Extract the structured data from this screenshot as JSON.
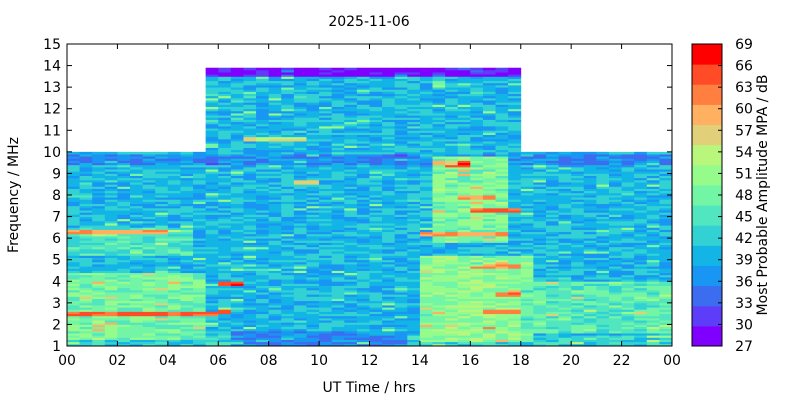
{
  "chart_data": {
    "type": "heatmap",
    "title": "2025-11-06",
    "xlabel": "UT Time / hrs",
    "ylabel": "Frequency / MHz",
    "xlim": [
      0,
      24
    ],
    "ylim": [
      1,
      15
    ],
    "x_ticks": [
      "00",
      "02",
      "04",
      "06",
      "08",
      "10",
      "12",
      "14",
      "16",
      "18",
      "20",
      "22",
      "00"
    ],
    "y_ticks": [
      "1",
      "2",
      "3",
      "4",
      "5",
      "6",
      "7",
      "8",
      "9",
      "10",
      "11",
      "12",
      "13",
      "14",
      "15"
    ],
    "colorbar": {
      "label": "Most Probable Amplitude MPA / dB",
      "ticks": [
        "27",
        "30",
        "33",
        "36",
        "39",
        "42",
        "45",
        "48",
        "51",
        "54",
        "57",
        "60",
        "63",
        "66",
        "69"
      ],
      "range": [
        27,
        69
      ],
      "colors": [
        "#8000ff",
        "#5e3df8",
        "#3c6df0",
        "#1996f3",
        "#13b4e6",
        "#32d2d4",
        "#51e6bf",
        "#73f5a6",
        "#95fc8c",
        "#b9f67c",
        "#e1cf7a",
        "#ffb060",
        "#ff7f40",
        "#ff4c26",
        "#ff0000"
      ]
    },
    "coverage": [
      {
        "x": [
          0,
          24
        ],
        "y": [
          1,
          10
        ]
      },
      {
        "x": [
          5.5,
          18
        ],
        "y": [
          10,
          13.9
        ]
      }
    ],
    "typical_level_db": 40,
    "bands": [
      {
        "x": [
          0,
          24
        ],
        "y": [
          1,
          1.5
        ],
        "db": 43
      },
      {
        "x": [
          0,
          24
        ],
        "y": [
          9.4,
          9.9
        ],
        "db": 36
      },
      {
        "x": [
          5.5,
          18
        ],
        "y": [
          13.5,
          13.9
        ],
        "db": 28
      },
      {
        "x": [
          0,
          5.5
        ],
        "y": [
          1.3,
          4.4
        ],
        "db": 48
      },
      {
        "x": [
          14,
          18.5
        ],
        "y": [
          1.2,
          5.2
        ],
        "db": 50
      },
      {
        "x": [
          14.5,
          17.5
        ],
        "y": [
          5.8,
          9.8
        ],
        "db": 49
      },
      {
        "x": [
          0,
          5
        ],
        "y": [
          5.2,
          6.5
        ],
        "db": 45
      },
      {
        "x": [
          18,
          24
        ],
        "y": [
          1.6,
          4
        ],
        "db": 46
      },
      {
        "x": [
          6.5,
          13.5
        ],
        "y": [
          1,
          1.7
        ],
        "db": 36
      }
    ],
    "hot_spots": [
      {
        "x": [
          0,
          6
        ],
        "y": [
          2.4,
          2.6
        ],
        "db": 64
      },
      {
        "x": [
          6.1,
          7.2
        ],
        "y": [
          3.8,
          4.0
        ],
        "db": 66
      },
      {
        "x": [
          5.8,
          6.6
        ],
        "y": [
          2.5,
          2.7
        ],
        "db": 62
      },
      {
        "x": [
          16,
          18
        ],
        "y": [
          7.2,
          7.4
        ],
        "db": 64
      },
      {
        "x": [
          15,
          16.2
        ],
        "y": [
          9.3,
          9.6
        ],
        "db": 66
      },
      {
        "x": [
          14.2,
          17.5
        ],
        "y": [
          6.1,
          6.3
        ],
        "db": 60
      },
      {
        "x": [
          0,
          4
        ],
        "y": [
          6.2,
          6.4
        ],
        "db": 60
      },
      {
        "x": [
          16.5,
          18
        ],
        "y": [
          2.5,
          2.7
        ],
        "db": 63
      },
      {
        "x": [
          16.8,
          18
        ],
        "y": [
          3.3,
          3.5
        ],
        "db": 62
      },
      {
        "x": [
          16.5,
          17.8
        ],
        "y": [
          4.6,
          4.8
        ],
        "db": 60
      },
      {
        "x": [
          15.5,
          17
        ],
        "y": [
          7.8,
          8.0
        ],
        "db": 60
      },
      {
        "x": [
          7,
          9.5
        ],
        "y": [
          10.5,
          10.7
        ],
        "db": 55
      },
      {
        "x": [
          9,
          10
        ],
        "y": [
          8.5,
          8.7
        ],
        "db": 56
      },
      {
        "x": [
          14.5,
          15.5
        ],
        "y": [
          9.4,
          9.6
        ],
        "db": 58
      }
    ]
  }
}
